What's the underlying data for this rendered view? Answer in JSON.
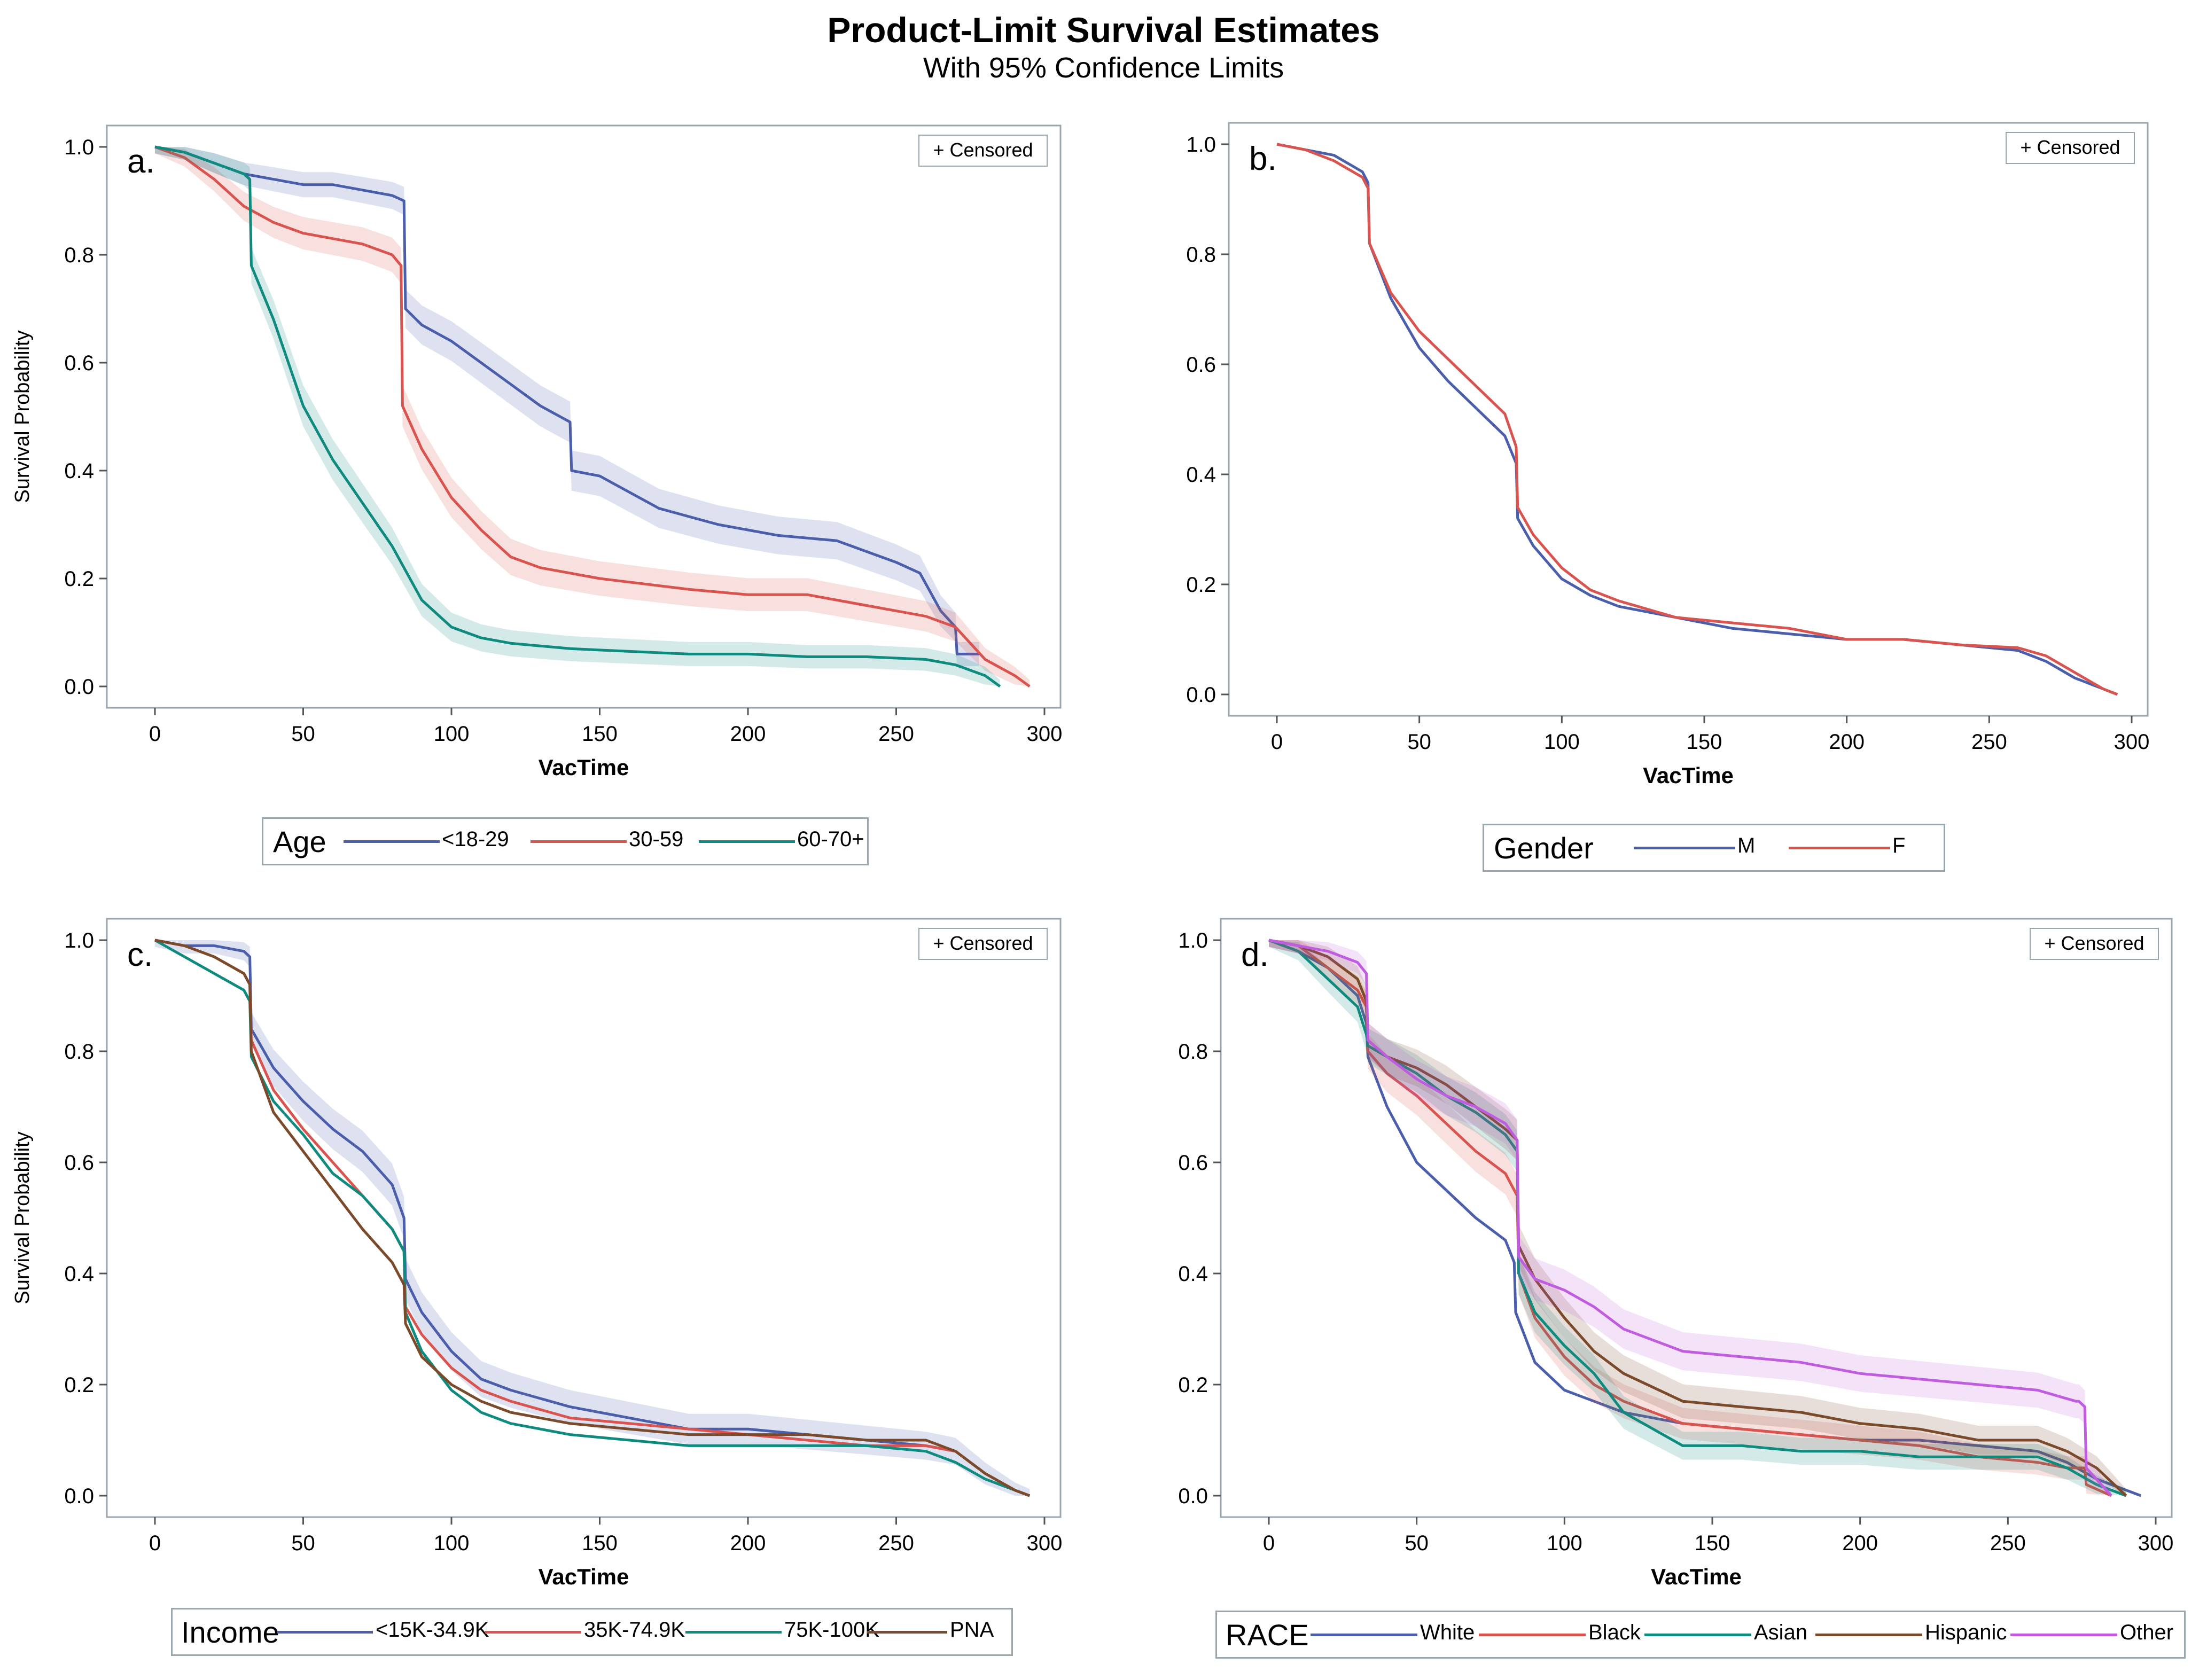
{
  "title": "Product-Limit Survival Estimates",
  "subtitle": "With 95% Confidence Limits",
  "colors": {
    "blue": "#4a5eab",
    "red": "#d9534f",
    "teal": "#0f8a7e",
    "brown": "#7b4a2a",
    "purple": "#c05ce0",
    "frame": "#9aa6ad"
  },
  "chart_data": [
    {
      "type": "line",
      "panel_label": "a.",
      "censored_label": "+ Censored",
      "xlabel": "VacTime",
      "ylabel": "Survival Probability",
      "xlim": [
        0,
        300
      ],
      "ylim": [
        0,
        1.0
      ],
      "xticks": [
        0,
        50,
        100,
        150,
        200,
        250,
        300
      ],
      "yticks": [
        "0.0",
        "0.2",
        "0.4",
        "0.6",
        "0.8",
        "1.0"
      ],
      "legend_title": "Age",
      "series": [
        {
          "name": "<18-29",
          "color": "blue",
          "band": true,
          "x": [
            0,
            10,
            20,
            30,
            40,
            50,
            60,
            70,
            80,
            84,
            84.5,
            90,
            100,
            110,
            120,
            130,
            140,
            140.5,
            150,
            170,
            190,
            210,
            230,
            250,
            258,
            265,
            270,
            270.5,
            278
          ],
          "y": [
            1.0,
            0.99,
            0.97,
            0.95,
            0.94,
            0.93,
            0.93,
            0.92,
            0.91,
            0.9,
            0.7,
            0.67,
            0.64,
            0.6,
            0.56,
            0.52,
            0.49,
            0.4,
            0.39,
            0.33,
            0.3,
            0.28,
            0.27,
            0.23,
            0.21,
            0.14,
            0.11,
            0.06,
            0.06
          ]
        },
        {
          "name": "30-59",
          "color": "red",
          "band": true,
          "x": [
            0,
            10,
            20,
            30,
            40,
            50,
            60,
            70,
            80,
            83,
            83.5,
            90,
            100,
            110,
            120,
            130,
            150,
            180,
            200,
            220,
            240,
            260,
            270,
            280,
            290,
            295
          ],
          "y": [
            1.0,
            0.98,
            0.94,
            0.89,
            0.86,
            0.84,
            0.83,
            0.82,
            0.8,
            0.78,
            0.52,
            0.44,
            0.35,
            0.29,
            0.24,
            0.22,
            0.2,
            0.18,
            0.17,
            0.17,
            0.15,
            0.13,
            0.11,
            0.05,
            0.02,
            0.0
          ]
        },
        {
          "name": "60-70+",
          "color": "teal",
          "band": true,
          "x": [
            0,
            10,
            20,
            30,
            32,
            32.5,
            40,
            50,
            60,
            70,
            80,
            90,
            100,
            110,
            120,
            140,
            160,
            180,
            200,
            220,
            240,
            260,
            270,
            280,
            285
          ],
          "y": [
            1.0,
            0.99,
            0.97,
            0.95,
            0.94,
            0.78,
            0.68,
            0.52,
            0.42,
            0.34,
            0.26,
            0.16,
            0.11,
            0.09,
            0.08,
            0.07,
            0.065,
            0.06,
            0.06,
            0.055,
            0.055,
            0.05,
            0.04,
            0.02,
            0.0
          ]
        }
      ]
    },
    {
      "type": "line",
      "panel_label": "b.",
      "censored_label": "+ Censored",
      "xlabel": "VacTime",
      "ylabel": "",
      "xlim": [
        0,
        300
      ],
      "ylim": [
        0,
        1.0
      ],
      "xticks": [
        0,
        50,
        100,
        150,
        200,
        250,
        300
      ],
      "yticks": [
        "0.0",
        "0.2",
        "0.4",
        "0.6",
        "0.8",
        "1.0"
      ],
      "legend_title": "Gender",
      "series": [
        {
          "name": "M",
          "color": "blue",
          "band": false,
          "x": [
            0,
            10,
            20,
            30,
            32,
            32.5,
            40,
            50,
            60,
            70,
            80,
            84,
            84.5,
            90,
            100,
            110,
            120,
            140,
            160,
            180,
            200,
            220,
            240,
            260,
            270,
            280,
            290,
            295
          ],
          "y": [
            1.0,
            0.99,
            0.98,
            0.95,
            0.93,
            0.82,
            0.72,
            0.63,
            0.57,
            0.52,
            0.47,
            0.42,
            0.32,
            0.27,
            0.21,
            0.18,
            0.16,
            0.14,
            0.12,
            0.11,
            0.1,
            0.1,
            0.09,
            0.08,
            0.06,
            0.03,
            0.01,
            0.0
          ]
        },
        {
          "name": "F",
          "color": "red",
          "band": false,
          "x": [
            0,
            10,
            20,
            30,
            32,
            32.5,
            40,
            50,
            60,
            70,
            80,
            84,
            84.5,
            90,
            100,
            110,
            120,
            140,
            160,
            180,
            200,
            220,
            240,
            260,
            270,
            280,
            290,
            295
          ],
          "y": [
            1.0,
            0.99,
            0.97,
            0.94,
            0.92,
            0.82,
            0.73,
            0.66,
            0.61,
            0.56,
            0.51,
            0.45,
            0.34,
            0.29,
            0.23,
            0.19,
            0.17,
            0.14,
            0.13,
            0.12,
            0.1,
            0.1,
            0.09,
            0.085,
            0.07,
            0.04,
            0.01,
            0.0
          ]
        }
      ]
    },
    {
      "type": "line",
      "panel_label": "c.",
      "censored_label": "+ Censored",
      "xlabel": "VacTime",
      "ylabel": "Survival Probability",
      "xlim": [
        0,
        300
      ],
      "ylim": [
        0,
        1.0
      ],
      "xticks": [
        0,
        50,
        100,
        150,
        200,
        250,
        300
      ],
      "yticks": [
        "0.0",
        "0.2",
        "0.4",
        "0.6",
        "0.8",
        "1.0"
      ],
      "legend_title": "Income",
      "series": [
        {
          "name": "<15K-34.9K",
          "color": "blue",
          "band": true,
          "x": [
            0,
            10,
            20,
            30,
            32,
            32.5,
            40,
            50,
            60,
            70,
            80,
            84,
            84.5,
            90,
            100,
            110,
            120,
            140,
            160,
            180,
            200,
            220,
            240,
            260,
            270,
            280,
            290,
            295
          ],
          "y": [
            1.0,
            0.99,
            0.99,
            0.98,
            0.97,
            0.84,
            0.77,
            0.71,
            0.66,
            0.62,
            0.56,
            0.5,
            0.39,
            0.33,
            0.26,
            0.21,
            0.19,
            0.16,
            0.14,
            0.12,
            0.12,
            0.11,
            0.1,
            0.09,
            0.08,
            0.04,
            0.01,
            0.0
          ]
        },
        {
          "name": "35K-74.9K",
          "color": "red",
          "band": false,
          "x": [
            0,
            10,
            20,
            30,
            32,
            32.5,
            40,
            50,
            60,
            70,
            80,
            84,
            84.5,
            90,
            100,
            110,
            120,
            140,
            160,
            180,
            200,
            220,
            240,
            260,
            270,
            280,
            290,
            295
          ],
          "y": [
            1.0,
            0.99,
            0.97,
            0.94,
            0.92,
            0.82,
            0.73,
            0.66,
            0.6,
            0.54,
            0.48,
            0.44,
            0.34,
            0.29,
            0.23,
            0.19,
            0.17,
            0.14,
            0.13,
            0.12,
            0.11,
            0.1,
            0.09,
            0.09,
            0.08,
            0.04,
            0.01,
            0.0
          ]
        },
        {
          "name": "75K-100K",
          "color": "teal",
          "band": false,
          "x": [
            0,
            10,
            20,
            30,
            32,
            32.5,
            40,
            50,
            60,
            70,
            80,
            84,
            84.5,
            90,
            100,
            110,
            120,
            140,
            160,
            180,
            200,
            220,
            240,
            260,
            270,
            280,
            290,
            295
          ],
          "y": [
            1.0,
            0.97,
            0.94,
            0.91,
            0.89,
            0.79,
            0.71,
            0.65,
            0.58,
            0.54,
            0.48,
            0.44,
            0.33,
            0.26,
            0.19,
            0.15,
            0.13,
            0.11,
            0.1,
            0.09,
            0.09,
            0.09,
            0.09,
            0.08,
            0.06,
            0.03,
            0.01,
            0.0
          ]
        },
        {
          "name": "PNA",
          "color": "brown",
          "band": false,
          "x": [
            0,
            10,
            20,
            30,
            32,
            32.5,
            40,
            50,
            60,
            70,
            80,
            84,
            84.5,
            90,
            100,
            110,
            120,
            140,
            160,
            180,
            200,
            220,
            240,
            260,
            270,
            280,
            290,
            295
          ],
          "y": [
            1.0,
            0.99,
            0.97,
            0.94,
            0.92,
            0.8,
            0.69,
            0.62,
            0.55,
            0.48,
            0.42,
            0.38,
            0.31,
            0.25,
            0.2,
            0.17,
            0.15,
            0.13,
            0.12,
            0.11,
            0.11,
            0.11,
            0.1,
            0.1,
            0.08,
            0.04,
            0.01,
            0.0
          ]
        }
      ]
    },
    {
      "type": "line",
      "panel_label": "d.",
      "censored_label": "+ Censored",
      "xlabel": "VacTime",
      "ylabel": "",
      "xlim": [
        0,
        300
      ],
      "ylim": [
        0,
        1.0
      ],
      "xticks": [
        0,
        50,
        100,
        150,
        200,
        250,
        300
      ],
      "yticks": [
        "0.0",
        "0.2",
        "0.4",
        "0.6",
        "0.8",
        "1.0"
      ],
      "legend_title": "RACE",
      "series": [
        {
          "name": "White",
          "color": "blue",
          "band": false,
          "x": [
            0,
            10,
            20,
            30,
            33,
            33.5,
            40,
            50,
            60,
            70,
            80,
            83,
            83.5,
            90,
            100,
            110,
            120,
            140,
            160,
            180,
            200,
            220,
            240,
            260,
            270,
            280,
            290,
            295
          ],
          "y": [
            1.0,
            0.98,
            0.95,
            0.9,
            0.85,
            0.79,
            0.7,
            0.6,
            0.55,
            0.5,
            0.46,
            0.42,
            0.33,
            0.24,
            0.19,
            0.17,
            0.15,
            0.13,
            0.12,
            0.11,
            0.1,
            0.1,
            0.09,
            0.08,
            0.06,
            0.03,
            0.01,
            0.0
          ]
        },
        {
          "name": "Black",
          "color": "red",
          "band": true,
          "x": [
            0,
            10,
            20,
            30,
            33,
            33.5,
            40,
            50,
            60,
            70,
            80,
            84,
            84.5,
            90,
            100,
            110,
            120,
            140,
            160,
            180,
            200,
            220,
            240,
            260,
            270,
            276,
            276.5,
            285
          ],
          "y": [
            1.0,
            0.99,
            0.95,
            0.91,
            0.88,
            0.8,
            0.76,
            0.72,
            0.67,
            0.62,
            0.58,
            0.54,
            0.4,
            0.32,
            0.25,
            0.2,
            0.17,
            0.13,
            0.12,
            0.11,
            0.1,
            0.09,
            0.07,
            0.06,
            0.05,
            0.05,
            0.02,
            0.0
          ]
        },
        {
          "name": "Asian",
          "color": "teal",
          "band": true,
          "x": [
            0,
            10,
            20,
            30,
            33,
            33.5,
            40,
            50,
            60,
            70,
            80,
            84,
            84.5,
            90,
            100,
            110,
            120,
            130,
            140,
            160,
            180,
            200,
            220,
            240,
            260,
            270,
            280,
            290
          ],
          "y": [
            1.0,
            0.98,
            0.93,
            0.88,
            0.83,
            0.81,
            0.79,
            0.76,
            0.72,
            0.69,
            0.65,
            0.62,
            0.4,
            0.33,
            0.27,
            0.22,
            0.15,
            0.12,
            0.09,
            0.09,
            0.08,
            0.08,
            0.07,
            0.07,
            0.07,
            0.05,
            0.02,
            0.0
          ]
        },
        {
          "name": "Hispanic",
          "color": "brown",
          "band": true,
          "x": [
            0,
            10,
            20,
            30,
            33,
            33.5,
            40,
            50,
            60,
            70,
            80,
            84,
            84.5,
            90,
            100,
            110,
            120,
            140,
            160,
            180,
            200,
            220,
            240,
            260,
            270,
            280,
            290
          ],
          "y": [
            1.0,
            0.99,
            0.97,
            0.93,
            0.89,
            0.82,
            0.79,
            0.77,
            0.74,
            0.7,
            0.66,
            0.64,
            0.45,
            0.39,
            0.32,
            0.26,
            0.22,
            0.17,
            0.16,
            0.15,
            0.13,
            0.12,
            0.1,
            0.1,
            0.08,
            0.05,
            0.0
          ]
        },
        {
          "name": "Other",
          "color": "purple",
          "band": true,
          "x": [
            0,
            10,
            20,
            30,
            33,
            33.5,
            40,
            50,
            60,
            70,
            80,
            84,
            84.5,
            90,
            100,
            110,
            120,
            140,
            160,
            180,
            200,
            220,
            240,
            260,
            273,
            274,
            276,
            276.5,
            285
          ],
          "y": [
            1.0,
            0.99,
            0.98,
            0.96,
            0.94,
            0.82,
            0.79,
            0.75,
            0.72,
            0.7,
            0.67,
            0.64,
            0.43,
            0.39,
            0.37,
            0.34,
            0.3,
            0.26,
            0.25,
            0.24,
            0.22,
            0.21,
            0.2,
            0.19,
            0.17,
            0.17,
            0.16,
            0.05,
            0.0
          ]
        }
      ]
    }
  ]
}
